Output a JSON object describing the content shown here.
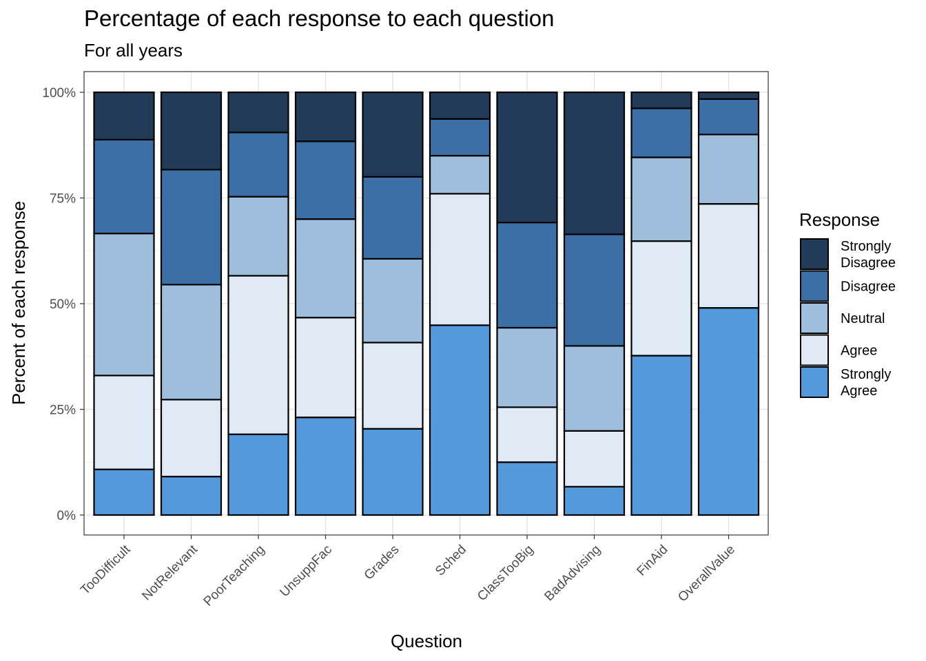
{
  "title": "Percentage of each response to each question",
  "subtitle": "For all years",
  "chart_data": {
    "type": "bar",
    "stacked": true,
    "title": "Percentage of each response to each question",
    "subtitle": "For all years",
    "xlabel": "Question",
    "ylabel": "Percent of each response",
    "ylim": [
      0,
      100
    ],
    "y_ticks": [
      "0%",
      "25%",
      "50%",
      "75%",
      "100%"
    ],
    "y_tick_values": [
      0,
      25,
      50,
      75,
      100
    ],
    "grid": true,
    "legend_position": "right",
    "legend_title": "Response",
    "categories": [
      "TooDifficult",
      "NotRelevant",
      "PoorTeaching",
      "UnsuppFac",
      "Grades",
      "Sched",
      "ClassTooBig",
      "BadAdvising",
      "FinAid",
      "OverallValue"
    ],
    "series": [
      {
        "name": "Strongly Agree",
        "label_lines": [
          "Strongly",
          "Agree"
        ],
        "color": "#5599DD",
        "values": [
          10.8,
          9.1,
          19.1,
          23.1,
          20.4,
          44.9,
          12.5,
          6.7,
          37.7,
          49.0
        ]
      },
      {
        "name": "Agree",
        "label_lines": [
          "Agree"
        ],
        "color": "#E0EAF4",
        "values": [
          22.2,
          18.2,
          37.5,
          23.6,
          20.4,
          31.1,
          13.0,
          13.2,
          27.1,
          24.6
        ]
      },
      {
        "name": "Neutral",
        "label_lines": [
          "Neutral"
        ],
        "color": "#9FBEDC",
        "values": [
          33.6,
          27.2,
          18.7,
          23.3,
          19.8,
          9.0,
          18.8,
          20.1,
          19.8,
          16.4
        ]
      },
      {
        "name": "Disagree",
        "label_lines": [
          "Disagree"
        ],
        "color": "#3C6FA5",
        "values": [
          22.2,
          27.2,
          15.2,
          18.4,
          19.4,
          8.7,
          24.9,
          26.4,
          11.6,
          8.4
        ]
      },
      {
        "name": "Strongly Disagree",
        "label_lines": [
          "Strongly",
          "Disagree"
        ],
        "color": "#223B58",
        "values": [
          11.2,
          18.3,
          9.5,
          11.6,
          20.0,
          6.3,
          30.8,
          33.6,
          3.8,
          1.6
        ]
      }
    ]
  }
}
